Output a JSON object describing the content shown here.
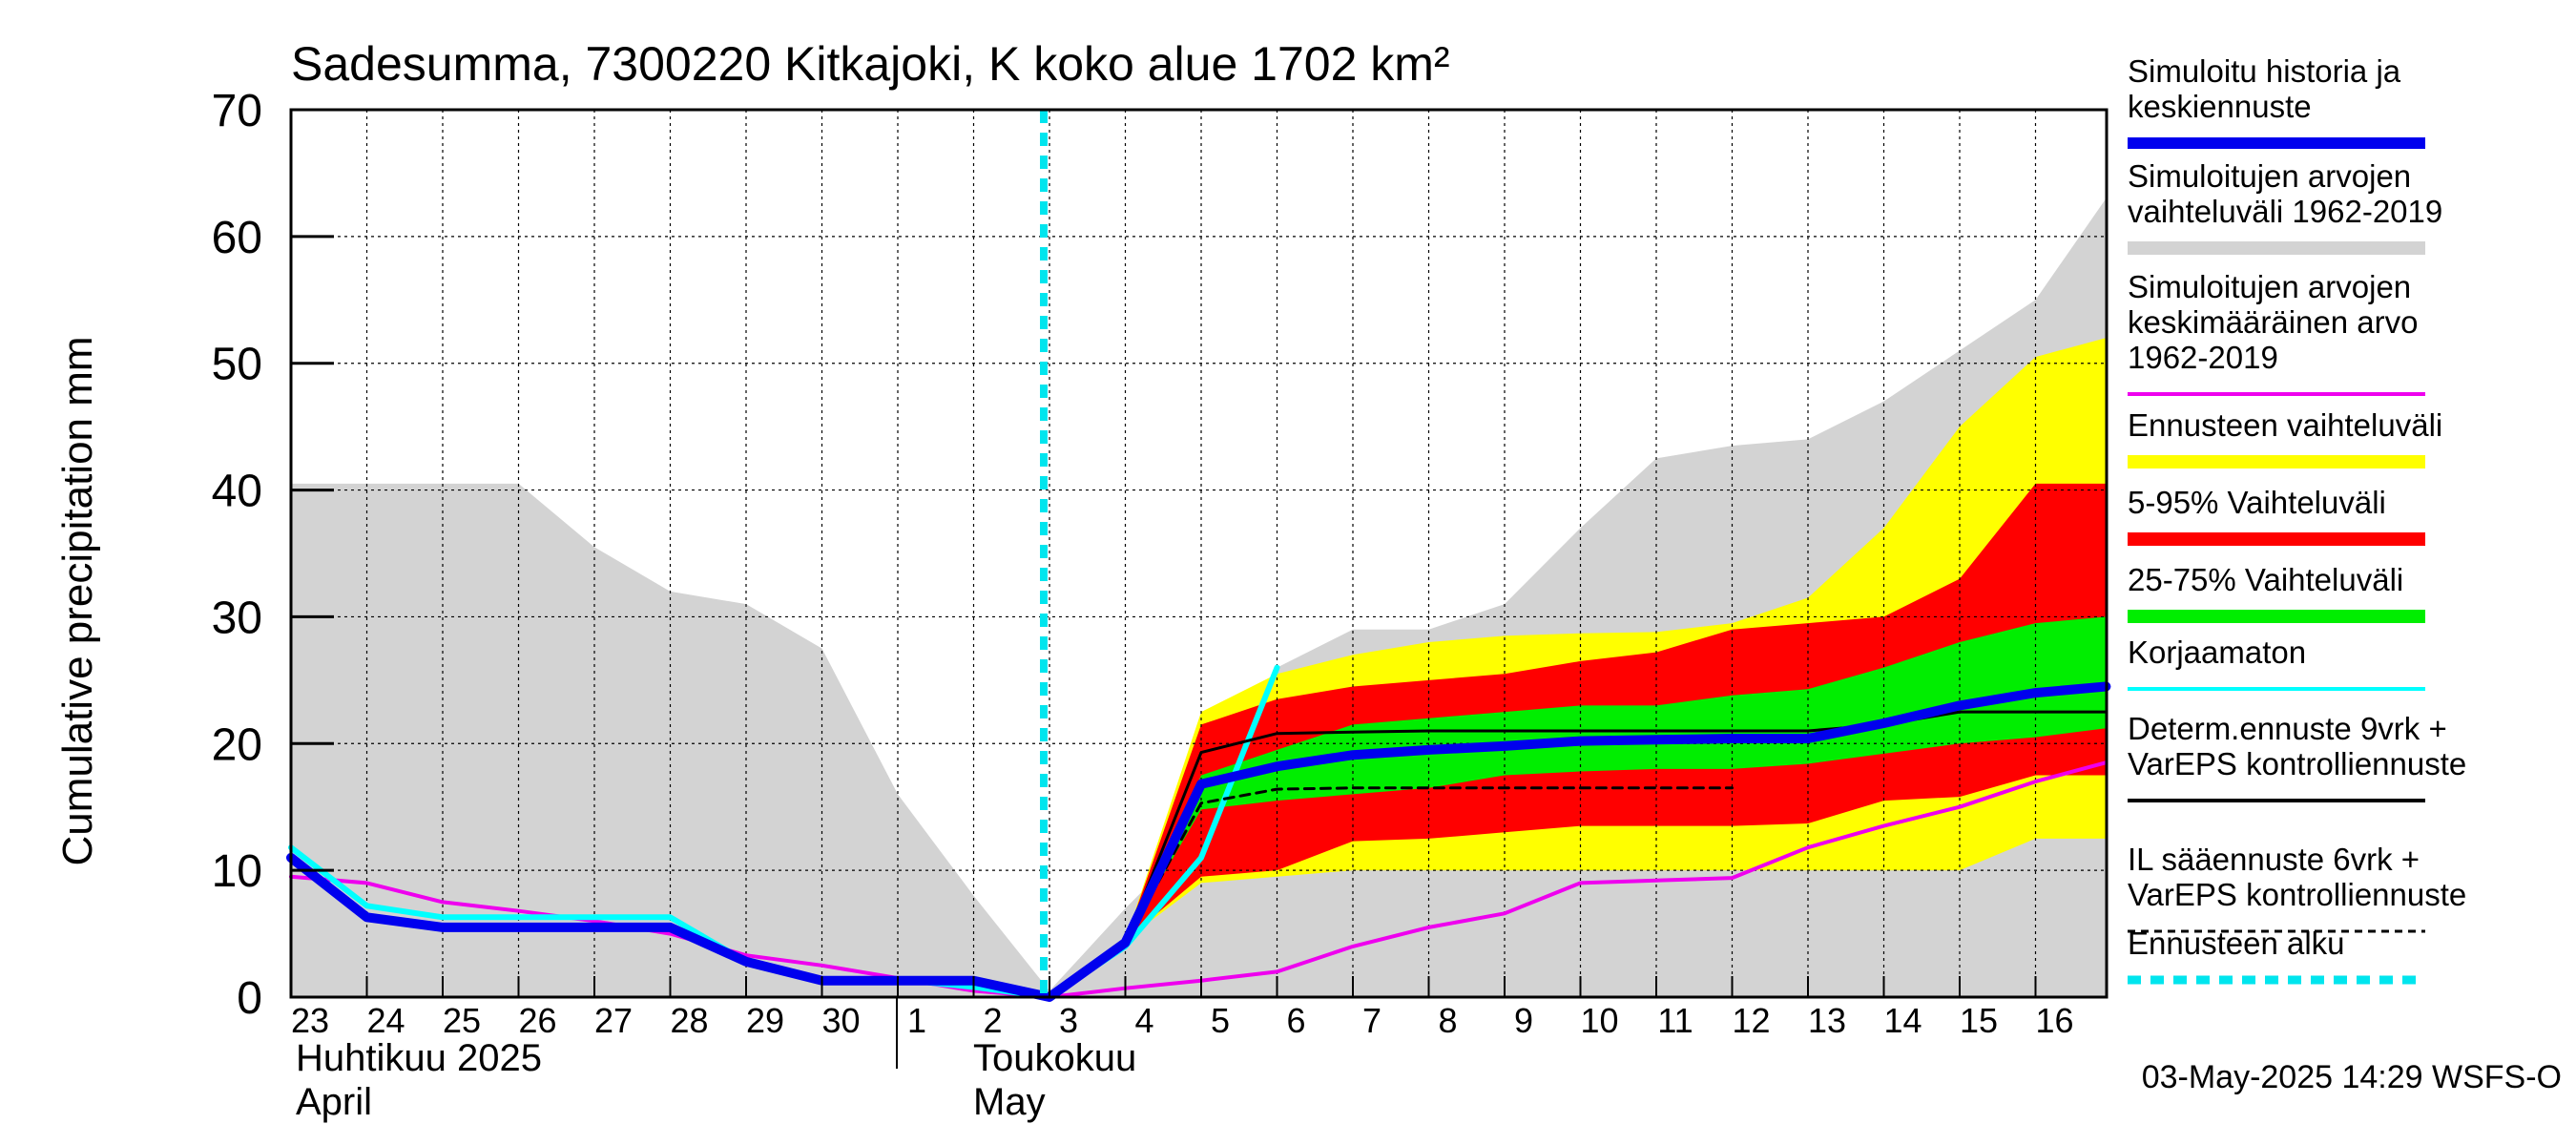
{
  "chart_data": {
    "type": "area",
    "title": "Sadesumma, 7300220 Kitkajoki, K koko alue 1702 km²",
    "ylabel": "Cumulative precipitation   mm",
    "ylim": [
      0,
      70
    ],
    "yticks": [
      0,
      10,
      20,
      30,
      40,
      50,
      60,
      70
    ],
    "grid": true,
    "x_day_labels": [
      "23",
      "24",
      "25",
      "26",
      "27",
      "28",
      "29",
      "30",
      "1",
      "2",
      "3",
      "4",
      "5",
      "6",
      "7",
      "8",
      "9",
      "10",
      "11",
      "12",
      "13",
      "14",
      "15",
      "16"
    ],
    "month_labels": {
      "april_fi": "Huhtikuu  2025",
      "april_en": "April",
      "may_fi": "Toukokuu",
      "may_en": "May"
    },
    "forecast_start_index": 10,
    "timestamp": "03-May-2025 14:29 WSFS-O",
    "legend_position": "right",
    "legend": [
      {
        "label_lines": [
          "Simuloitu historia ja",
          "keskiennuste"
        ],
        "color": "#0000ee",
        "style": "thick"
      },
      {
        "label_lines": [
          "Simuloitujen arvojen",
          "vaihteluväli 1962-2019"
        ],
        "color": "#d3d3d3",
        "style": "band"
      },
      {
        "label_lines": [
          "Simuloitujen arvojen",
          "keskimääräinen arvo",
          "   1962-2019"
        ],
        "color": "#ee00ee",
        "style": "line"
      },
      {
        "label_lines": [
          "Ennusteen vaihteluväli"
        ],
        "color": "#ffff00",
        "style": "band"
      },
      {
        "label_lines": [
          "5-95% Vaihteluväli"
        ],
        "color": "#ff0000",
        "style": "band"
      },
      {
        "label_lines": [
          "25-75% Vaihteluväli"
        ],
        "color": "#00ee00",
        "style": "band"
      },
      {
        "label_lines": [
          "Korjaamaton"
        ],
        "color": "#00ffff",
        "style": "line"
      },
      {
        "label_lines": [
          "Determ.ennuste 9vrk  +",
          "VarEPS kontrolliennuste"
        ],
        "color": "#000000",
        "style": "line"
      },
      {
        "label_lines": [
          "IL sääennuste 6vrk  +",
          "  VarEPS kontrolliennuste"
        ],
        "color": "#000000",
        "style": "dashed"
      },
      {
        "label_lines": [
          "Ennusteen alku"
        ],
        "color": "#00e5ee",
        "style": "dotted"
      }
    ],
    "series": [
      {
        "name": "Simuloitujen arvojen vaihteluväli 1962-2019 (max)",
        "x": [
          0,
          1,
          2,
          3,
          4,
          5,
          6,
          7,
          8,
          9,
          10,
          11,
          12,
          13,
          14,
          15,
          16,
          17,
          18,
          19,
          20,
          21,
          22,
          23,
          23.93
        ],
        "values": [
          40.5,
          40.5,
          40.5,
          40.5,
          35.5,
          32,
          31,
          27.5,
          16,
          8,
          0.5,
          7,
          13,
          26,
          29,
          29,
          31,
          37,
          42.5,
          43.5,
          44,
          47,
          51,
          55,
          63
        ]
      },
      {
        "name": "Simuloitujen arvojen vaihteluväli 1962-2019 (min)",
        "x": [
          0,
          10,
          23.93
        ],
        "values": [
          0,
          0,
          0
        ]
      },
      {
        "name": "Ennusteen vaihteluväli (max)",
        "x": [
          10,
          11,
          12,
          13,
          14,
          15,
          16,
          17,
          18,
          19,
          20,
          21,
          22,
          23,
          23.93
        ],
        "values": [
          0,
          4.5,
          22.5,
          25.5,
          27,
          28,
          28.5,
          28.7,
          28.8,
          29.5,
          31.5,
          37,
          45,
          50.5,
          52
        ]
      },
      {
        "name": "Ennusteen vaihteluväli (min)",
        "x": [
          10,
          11,
          12,
          13,
          14,
          15,
          16,
          17,
          18,
          19,
          20,
          21,
          22,
          23,
          23.93
        ],
        "values": [
          0,
          4.5,
          9,
          9.5,
          10,
          10,
          10,
          10,
          10,
          10,
          10,
          10,
          10,
          12.5,
          12.5
        ]
      },
      {
        "name": "5-95% Vaihteluväli (max)",
        "x": [
          10,
          11,
          12,
          13,
          14,
          15,
          16,
          17,
          18,
          19,
          20,
          21,
          22,
          23,
          23.93
        ],
        "values": [
          0,
          4.5,
          21.5,
          23.5,
          24.5,
          25,
          25.5,
          26.5,
          27.2,
          29,
          29.5,
          30,
          33,
          40.5,
          40.5
        ]
      },
      {
        "name": "5-95% Vaihteluväli (min)",
        "x": [
          10,
          11,
          12,
          13,
          14,
          15,
          16,
          17,
          18,
          19,
          20,
          21,
          22,
          23,
          23.93
        ],
        "values": [
          0,
          4.5,
          9.5,
          10,
          12.3,
          12.5,
          13,
          13.5,
          13.5,
          13.5,
          13.7,
          15.5,
          15.8,
          17.5,
          17.5
        ]
      },
      {
        "name": "25-75% Vaihteluväli (max)",
        "x": [
          10,
          11,
          12,
          13,
          14,
          15,
          16,
          17,
          18,
          19,
          20,
          21,
          22,
          23,
          23.93
        ],
        "values": [
          0,
          4.5,
          17.5,
          19.5,
          21.5,
          22,
          22.5,
          23,
          23,
          23.8,
          24.3,
          26,
          28,
          29.5,
          30
        ]
      },
      {
        "name": "25-75% Vaihteluväli (min)",
        "x": [
          10,
          11,
          12,
          13,
          14,
          15,
          16,
          17,
          18,
          19,
          20,
          21,
          22,
          23,
          23.93
        ],
        "values": [
          0,
          4.5,
          14.8,
          15.5,
          16,
          16.5,
          17.5,
          17.8,
          18,
          18,
          18.4,
          19.2,
          20,
          20.5,
          21.2
        ]
      },
      {
        "name": "Simuloitujen arvojen keskimääräinen arvo 1962-2019",
        "x": [
          0,
          1,
          2,
          3,
          4,
          5,
          6,
          7,
          8,
          9,
          10,
          11,
          12,
          13,
          14,
          15,
          16,
          17,
          18,
          19,
          20,
          21,
          22,
          23,
          23.93
        ],
        "values": [
          9.5,
          9,
          7.5,
          6.8,
          6,
          5,
          3.3,
          2.5,
          1.5,
          0.5,
          0,
          0.7,
          1.3,
          2,
          4,
          5.5,
          6.6,
          9,
          9.2,
          9.4,
          11.8,
          13.5,
          15,
          17,
          18.5
        ]
      },
      {
        "name": "Korjaamaton",
        "x": [
          0,
          1,
          2,
          3,
          4,
          5,
          6,
          7,
          8,
          9,
          10,
          11,
          12,
          13
        ],
        "values": [
          11.8,
          7.2,
          6.3,
          6.3,
          6.3,
          6.3,
          2.8,
          1.4,
          1.4,
          0.8,
          0,
          4,
          11,
          26
        ]
      },
      {
        "name": "Determ.ennuste 9vrk + VarEPS kontrolliennuste",
        "x": [
          10,
          11,
          12,
          13,
          14,
          15,
          16,
          17,
          18,
          19,
          20,
          21,
          22,
          23,
          23.93
        ],
        "values": [
          0,
          4.3,
          19.3,
          20.8,
          20.9,
          21,
          21,
          21,
          21,
          21,
          21,
          21.5,
          22.5,
          22.5,
          22.5
        ]
      },
      {
        "name": "IL sääennuste 6vrk + VarEPS kontrolliennuste",
        "x": [
          10,
          11,
          12,
          13,
          14,
          15,
          16,
          17,
          18,
          19
        ],
        "values": [
          0,
          4.3,
          15.3,
          16.4,
          16.5,
          16.5,
          16.5,
          16.5,
          16.5,
          16.5
        ]
      },
      {
        "name": "Simuloitu historia ja keskiennuste",
        "x": [
          0,
          1,
          2,
          3,
          4,
          5,
          6,
          7,
          8,
          9,
          10,
          11,
          12,
          13,
          14,
          15,
          16,
          17,
          18,
          19,
          20,
          21,
          22,
          23,
          23.93
        ],
        "values": [
          11,
          6.3,
          5.5,
          5.5,
          5.5,
          5.5,
          2.8,
          1.3,
          1.3,
          1.3,
          0,
          4.3,
          16.8,
          18.2,
          19.1,
          19.5,
          19.8,
          20.2,
          20.3,
          20.4,
          20.4,
          21.6,
          23,
          24,
          24.5
        ]
      }
    ]
  }
}
